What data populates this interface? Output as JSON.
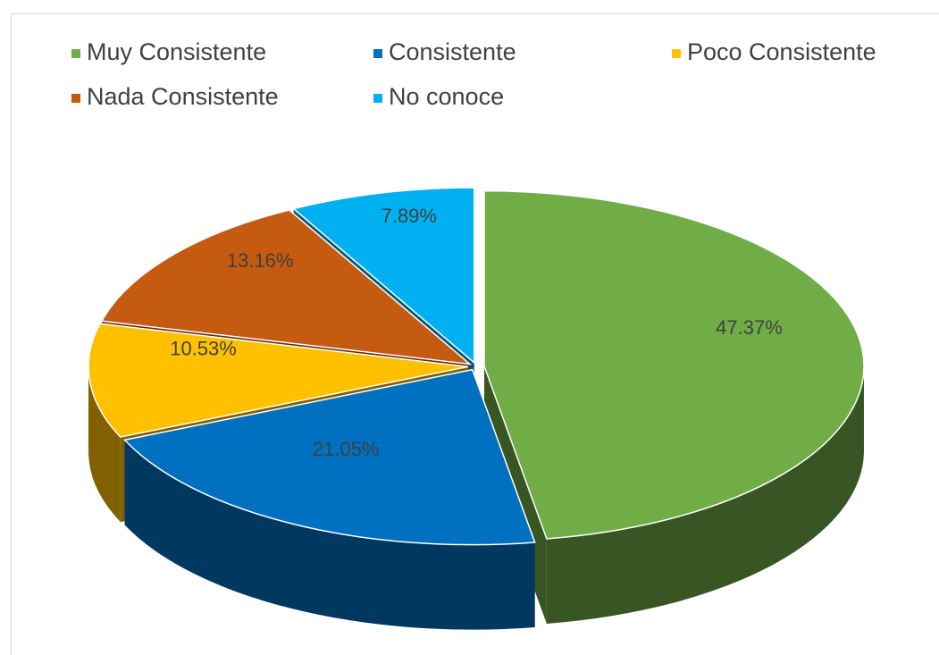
{
  "chart_data": {
    "type": "pie",
    "categories": [
      "Muy  Consistente",
      "Consistente",
      "Poco Consistente",
      "Nada Consistente",
      "No conoce"
    ],
    "values": [
      47.37,
      21.05,
      10.53,
      13.16,
      7.89
    ],
    "value_labels": [
      "47.37%",
      "21.05%",
      "10.53%",
      "13.16%",
      "7.89%"
    ],
    "colors": [
      "#70ad47",
      "#0070c0",
      "#ffc000",
      "#c55a11",
      "#00b0f0"
    ],
    "legend": "top"
  }
}
